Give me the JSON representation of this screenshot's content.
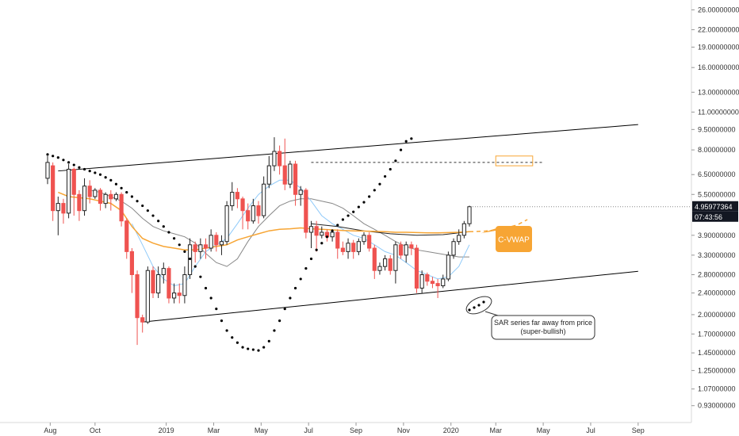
{
  "chart_data": {
    "type": "candlestick",
    "y_scale": "log",
    "ylim": [
      0.88,
      27.5
    ],
    "y_ticks": [
      {
        "label": "26.00000000",
        "value": 26.0
      },
      {
        "label": "22.00000000",
        "value": 22.0
      },
      {
        "label": "19.00000000",
        "value": 19.0
      },
      {
        "label": "16.00000000",
        "value": 16.0
      },
      {
        "label": "13.00000000",
        "value": 13.0
      },
      {
        "label": "11.00000000",
        "value": 11.0
      },
      {
        "label": "9.50000000",
        "value": 9.5
      },
      {
        "label": "8.00000000",
        "value": 8.0
      },
      {
        "label": "6.50000000",
        "value": 6.5
      },
      {
        "label": "5.50000000",
        "value": 5.5
      },
      {
        "label": "3.90000000",
        "value": 3.9
      },
      {
        "label": "3.30000000",
        "value": 3.3
      },
      {
        "label": "2.80000000",
        "value": 2.8
      },
      {
        "label": "2.40000000",
        "value": 2.4
      },
      {
        "label": "2.00000000",
        "value": 2.0
      },
      {
        "label": "1.70000000",
        "value": 1.7
      },
      {
        "label": "1.45000000",
        "value": 1.45
      },
      {
        "label": "1.25000000",
        "value": 1.25
      },
      {
        "label": "1.07000000",
        "value": 1.07
      },
      {
        "label": "0.93000000",
        "value": 0.93
      }
    ],
    "x_ticks": [
      {
        "label": "Aug",
        "bar": 0.5
      },
      {
        "label": "Oct",
        "bar": 9
      },
      {
        "label": "2019",
        "bar": 22.5
      },
      {
        "label": "Mar",
        "bar": 31.5
      },
      {
        "label": "May",
        "bar": 40.5
      },
      {
        "label": "Jul",
        "bar": 49.5
      },
      {
        "label": "Sep",
        "bar": 58.5
      },
      {
        "label": "Nov",
        "bar": 67.5
      },
      {
        "label": "2020",
        "bar": 76.5
      },
      {
        "label": "Mar",
        "bar": 85
      },
      {
        "label": "May",
        "bar": 94
      },
      {
        "label": "Jul",
        "bar": 103
      },
      {
        "label": "Sep",
        "bar": 112
      }
    ],
    "price_label": "4.95977364",
    "countdown_label": "07:43:56",
    "colors": {
      "up": "#ffffff",
      "down": "#ef5350",
      "outline": "#222222",
      "vwap": "#f7a534",
      "ma_fast": "#90caf9",
      "ma_slow": "#888888",
      "sar": "#000000",
      "channel": "#000000",
      "last_price": "#131722"
    },
    "candles": [
      {
        "open": 6.3,
        "close": 7.2,
        "high": 7.6,
        "low": 6.0
      },
      {
        "open": 7.0,
        "close": 4.8,
        "high": 7.2,
        "low": 4.4
      },
      {
        "open": 4.8,
        "close": 5.1,
        "high": 5.4,
        "low": 3.9
      },
      {
        "open": 5.1,
        "close": 4.7,
        "high": 5.3,
        "low": 4.3
      },
      {
        "open": 4.7,
        "close": 6.8,
        "high": 7.1,
        "low": 4.5
      },
      {
        "open": 6.8,
        "close": 5.5,
        "high": 6.9,
        "low": 4.6
      },
      {
        "open": 5.5,
        "close": 4.8,
        "high": 5.7,
        "low": 4.4
      },
      {
        "open": 4.8,
        "close": 5.9,
        "high": 6.3,
        "low": 4.6
      },
      {
        "open": 5.9,
        "close": 5.4,
        "high": 6.2,
        "low": 5.1
      },
      {
        "open": 5.4,
        "close": 5.7,
        "high": 5.8,
        "low": 5.3
      },
      {
        "open": 5.7,
        "close": 5.1,
        "high": 5.8,
        "low": 4.8
      },
      {
        "open": 5.1,
        "close": 5.5,
        "high": 5.6,
        "low": 4.9
      },
      {
        "open": 5.5,
        "close": 5.3,
        "high": 5.7,
        "low": 4.8
      },
      {
        "open": 5.3,
        "close": 5.5,
        "high": 5.6,
        "low": 5.2
      },
      {
        "open": 5.5,
        "close": 4.4,
        "high": 5.6,
        "low": 4.2
      },
      {
        "open": 4.4,
        "close": 3.4,
        "high": 4.5,
        "low": 3.2
      },
      {
        "open": 3.4,
        "close": 2.8,
        "high": 3.5,
        "low": 2.4
      },
      {
        "open": 2.8,
        "close": 1.95,
        "high": 2.9,
        "low": 1.55
      },
      {
        "open": 1.95,
        "close": 1.88,
        "high": 2.0,
        "low": 1.72
      },
      {
        "open": 1.88,
        "close": 2.9,
        "high": 3.0,
        "low": 1.85
      },
      {
        "open": 2.9,
        "close": 2.4,
        "high": 3.0,
        "low": 2.3
      },
      {
        "open": 2.4,
        "close": 2.8,
        "high": 3.0,
        "low": 2.3
      },
      {
        "open": 2.8,
        "close": 2.95,
        "high": 3.1,
        "low": 2.6
      },
      {
        "open": 2.95,
        "close": 2.3,
        "high": 3.0,
        "low": 2.2
      },
      {
        "open": 2.3,
        "close": 2.4,
        "high": 2.6,
        "low": 2.2
      },
      {
        "open": 2.4,
        "close": 2.35,
        "high": 2.6,
        "low": 2.2
      },
      {
        "open": 2.35,
        "close": 2.8,
        "high": 3.0,
        "low": 2.2
      },
      {
        "open": 2.8,
        "close": 3.6,
        "high": 3.8,
        "low": 2.7
      },
      {
        "open": 3.6,
        "close": 3.4,
        "high": 3.7,
        "low": 3.1
      },
      {
        "open": 3.4,
        "close": 3.6,
        "high": 3.8,
        "low": 3.2
      },
      {
        "open": 3.6,
        "close": 3.5,
        "high": 3.8,
        "low": 3.2
      },
      {
        "open": 3.5,
        "close": 3.9,
        "high": 4.1,
        "low": 3.4
      },
      {
        "open": 3.9,
        "close": 3.6,
        "high": 4.0,
        "low": 3.4
      },
      {
        "open": 3.6,
        "close": 3.7,
        "high": 3.9,
        "low": 3.3
      },
      {
        "open": 3.7,
        "close": 5.0,
        "high": 5.2,
        "low": 3.6
      },
      {
        "open": 5.0,
        "close": 5.6,
        "high": 6.1,
        "low": 4.8
      },
      {
        "open": 5.6,
        "close": 5.3,
        "high": 5.8,
        "low": 4.9
      },
      {
        "open": 5.3,
        "close": 4.8,
        "high": 5.4,
        "low": 4.1
      },
      {
        "open": 4.8,
        "close": 4.4,
        "high": 5.1,
        "low": 4.1
      },
      {
        "open": 4.4,
        "close": 5.0,
        "high": 5.3,
        "low": 4.3
      },
      {
        "open": 5.0,
        "close": 4.6,
        "high": 5.2,
        "low": 4.3
      },
      {
        "open": 4.6,
        "close": 6.0,
        "high": 6.4,
        "low": 4.5
      },
      {
        "open": 6.0,
        "close": 7.0,
        "high": 7.6,
        "low": 5.8
      },
      {
        "open": 7.0,
        "close": 7.9,
        "high": 8.9,
        "low": 6.7
      },
      {
        "open": 7.9,
        "close": 7.0,
        "high": 8.3,
        "low": 6.5
      },
      {
        "open": 7.0,
        "close": 6.0,
        "high": 8.8,
        "low": 5.7
      },
      {
        "open": 6.0,
        "close": 7.1,
        "high": 7.3,
        "low": 5.8
      },
      {
        "open": 7.1,
        "close": 5.5,
        "high": 7.3,
        "low": 5.0
      },
      {
        "open": 5.5,
        "close": 5.7,
        "high": 5.9,
        "low": 5.0
      },
      {
        "open": 5.7,
        "close": 4.0,
        "high": 5.8,
        "low": 3.8
      },
      {
        "open": 4.0,
        "close": 4.2,
        "high": 4.4,
        "low": 3.5
      },
      {
        "open": 4.2,
        "close": 3.9,
        "high": 4.4,
        "low": 3.4
      },
      {
        "open": 3.9,
        "close": 4.0,
        "high": 4.2,
        "low": 3.8
      },
      {
        "open": 4.0,
        "close": 3.85,
        "high": 4.1,
        "low": 3.7
      },
      {
        "open": 3.85,
        "close": 4.0,
        "high": 4.1,
        "low": 3.7
      },
      {
        "open": 4.0,
        "close": 3.5,
        "high": 4.1,
        "low": 3.2
      },
      {
        "open": 3.5,
        "close": 3.4,
        "high": 3.7,
        "low": 3.3
      },
      {
        "open": 3.4,
        "close": 3.65,
        "high": 3.8,
        "low": 3.2
      },
      {
        "open": 3.65,
        "close": 3.4,
        "high": 3.75,
        "low": 3.2
      },
      {
        "open": 3.4,
        "close": 3.7,
        "high": 3.8,
        "low": 3.3
      },
      {
        "open": 3.7,
        "close": 3.9,
        "high": 4.0,
        "low": 3.6
      },
      {
        "open": 3.9,
        "close": 3.5,
        "high": 4.0,
        "low": 3.4
      },
      {
        "open": 3.5,
        "close": 2.9,
        "high": 3.6,
        "low": 2.7
      },
      {
        "open": 2.9,
        "close": 3.0,
        "high": 3.1,
        "low": 2.8
      },
      {
        "open": 3.0,
        "close": 3.2,
        "high": 3.3,
        "low": 2.9
      },
      {
        "open": 3.2,
        "close": 2.9,
        "high": 3.3,
        "low": 2.8
      },
      {
        "open": 2.9,
        "close": 3.6,
        "high": 3.7,
        "low": 2.6
      },
      {
        "open": 3.6,
        "close": 3.3,
        "high": 3.7,
        "low": 3.2
      },
      {
        "open": 3.3,
        "close": 3.6,
        "high": 3.7,
        "low": 3.1
      },
      {
        "open": 3.6,
        "close": 3.5,
        "high": 3.7,
        "low": 3.3
      },
      {
        "open": 3.5,
        "close": 2.5,
        "high": 3.6,
        "low": 2.4
      },
      {
        "open": 2.5,
        "close": 2.8,
        "high": 2.9,
        "low": 2.4
      },
      {
        "open": 2.8,
        "close": 2.65,
        "high": 2.85,
        "low": 2.55
      },
      {
        "open": 2.65,
        "close": 2.6,
        "high": 2.75,
        "low": 2.5
      },
      {
        "open": 2.6,
        "close": 2.55,
        "high": 2.7,
        "low": 2.3
      },
      {
        "open": 2.55,
        "close": 2.7,
        "high": 2.8,
        "low": 2.5
      },
      {
        "open": 2.7,
        "close": 3.3,
        "high": 3.4,
        "low": 2.65
      },
      {
        "open": 3.3,
        "close": 3.7,
        "high": 3.8,
        "low": 3.2
      },
      {
        "open": 3.7,
        "close": 3.9,
        "high": 4.1,
        "low": 3.6
      },
      {
        "open": 3.9,
        "close": 4.3,
        "high": 4.4,
        "low": 3.8
      },
      {
        "open": 4.3,
        "close": 4.96,
        "high": 5.0,
        "low": 4.2
      }
    ],
    "vwap": [
      [
        2,
        5.6
      ],
      [
        4,
        5.4
      ],
      [
        6,
        5.35
      ],
      [
        8,
        5.3
      ],
      [
        10,
        5.2
      ],
      [
        12,
        5.1
      ],
      [
        14,
        4.8
      ],
      [
        16,
        4.2
      ],
      [
        18,
        3.8
      ],
      [
        20,
        3.65
      ],
      [
        22,
        3.55
      ],
      [
        24,
        3.5
      ],
      [
        26,
        3.45
      ],
      [
        28,
        3.45
      ],
      [
        30,
        3.5
      ],
      [
        32,
        3.55
      ],
      [
        34,
        3.6
      ],
      [
        36,
        3.75
      ],
      [
        38,
        3.85
      ],
      [
        40,
        3.95
      ],
      [
        42,
        4.05
      ],
      [
        44,
        4.1
      ],
      [
        46,
        4.12
      ],
      [
        48,
        4.15
      ],
      [
        50,
        4.12
      ],
      [
        52,
        4.1
      ],
      [
        54,
        4.08
      ],
      [
        56,
        4.06
      ],
      [
        58,
        4.05
      ],
      [
        60,
        4.04
      ],
      [
        62,
        4.03
      ],
      [
        64,
        4.02
      ],
      [
        66,
        4.0
      ],
      [
        68,
        4.0
      ],
      [
        70,
        3.99
      ],
      [
        72,
        3.98
      ],
      [
        74,
        3.98
      ],
      [
        76,
        3.99
      ],
      [
        78,
        4.0
      ],
      [
        80,
        4.02
      ]
    ],
    "vwap_projection": [
      [
        80,
        4.02
      ],
      [
        83,
        4.04
      ],
      [
        86,
        4.1
      ],
      [
        89,
        4.25
      ],
      [
        91,
        4.45
      ]
    ],
    "ma_slow": [
      [
        8,
        5.7
      ],
      [
        10,
        5.6
      ],
      [
        12,
        5.4
      ],
      [
        14,
        5.2
      ],
      [
        16,
        4.9
      ],
      [
        18,
        4.5
      ],
      [
        20,
        4.2
      ],
      [
        22,
        4.05
      ],
      [
        24,
        3.95
      ],
      [
        26,
        3.85
      ],
      [
        28,
        3.65
      ],
      [
        30,
        3.35
      ],
      [
        32,
        3.1
      ],
      [
        34,
        3.0
      ],
      [
        36,
        3.2
      ],
      [
        38,
        3.7
      ],
      [
        40,
        4.2
      ],
      [
        42,
        4.6
      ],
      [
        44,
        5.0
      ],
      [
        46,
        5.2
      ],
      [
        48,
        5.3
      ],
      [
        50,
        5.3
      ],
      [
        52,
        5.2
      ],
      [
        54,
        5.1
      ],
      [
        56,
        4.9
      ],
      [
        58,
        4.6
      ],
      [
        60,
        4.3
      ],
      [
        62,
        4.1
      ],
      [
        64,
        3.9
      ],
      [
        66,
        3.7
      ],
      [
        68,
        3.55
      ],
      [
        70,
        3.45
      ],
      [
        72,
        3.4
      ],
      [
        74,
        3.35
      ],
      [
        76,
        3.3
      ],
      [
        78,
        3.25
      ],
      [
        80,
        3.25
      ]
    ],
    "ma_fast": [
      [
        16,
        4.3
      ],
      [
        18,
        3.6
      ],
      [
        20,
        3.0
      ],
      [
        22,
        2.7
      ],
      [
        24,
        2.55
      ],
      [
        26,
        2.6
      ],
      [
        28,
        3.0
      ],
      [
        30,
        3.4
      ],
      [
        32,
        3.6
      ],
      [
        34,
        3.8
      ],
      [
        36,
        4.3
      ],
      [
        38,
        4.9
      ],
      [
        40,
        5.5
      ],
      [
        42,
        5.9
      ],
      [
        44,
        6.2
      ],
      [
        46,
        6.2
      ],
      [
        48,
        5.8
      ],
      [
        50,
        5.2
      ],
      [
        52,
        4.6
      ],
      [
        54,
        4.3
      ],
      [
        56,
        4.1
      ],
      [
        58,
        3.9
      ],
      [
        60,
        3.8
      ],
      [
        62,
        3.6
      ],
      [
        64,
        3.4
      ],
      [
        66,
        3.3
      ],
      [
        68,
        3.1
      ],
      [
        70,
        2.9
      ],
      [
        72,
        2.8
      ],
      [
        74,
        2.7
      ],
      [
        76,
        2.75
      ],
      [
        78,
        3.0
      ],
      [
        80,
        3.6
      ]
    ],
    "vwap_last_segment": [
      [
        50,
        4.3
      ],
      [
        55,
        4.2
      ],
      [
        60,
        4.05
      ],
      [
        65,
        3.95
      ],
      [
        70,
        3.9
      ],
      [
        75,
        3.92
      ],
      [
        80,
        4.02
      ]
    ],
    "sar": [
      [
        0,
        7.7
      ],
      [
        1,
        7.6
      ],
      [
        2,
        7.5
      ],
      [
        3,
        7.35
      ],
      [
        4,
        7.2
      ],
      [
        5,
        7.05
      ],
      [
        6,
        6.9
      ],
      [
        7,
        6.8
      ],
      [
        8,
        6.7
      ],
      [
        9,
        6.6
      ],
      [
        10,
        6.5
      ],
      [
        11,
        6.35
      ],
      [
        12,
        6.2
      ],
      [
        13,
        6.0
      ],
      [
        14,
        5.8
      ],
      [
        15,
        5.6
      ],
      [
        16,
        5.4
      ],
      [
        17,
        5.2
      ],
      [
        18,
        5.0
      ],
      [
        19,
        4.8
      ],
      [
        20,
        4.6
      ],
      [
        21,
        4.4
      ],
      [
        22,
        4.2
      ],
      [
        23,
        4.0
      ],
      [
        24,
        3.8
      ],
      [
        25,
        3.6
      ],
      [
        26,
        3.4
      ],
      [
        27,
        3.2
      ],
      [
        28,
        3.0
      ],
      [
        29,
        2.75
      ],
      [
        30,
        2.5
      ],
      [
        31,
        2.3
      ],
      [
        32,
        2.1
      ],
      [
        33,
        1.9
      ],
      [
        34,
        1.75
      ],
      [
        35,
        1.65
      ],
      [
        36,
        1.58
      ],
      [
        37,
        1.52
      ],
      [
        38,
        1.5
      ],
      [
        39,
        1.49
      ],
      [
        40,
        1.48
      ],
      [
        41,
        1.52
      ],
      [
        42,
        1.6
      ],
      [
        43,
        1.75
      ],
      [
        44,
        1.9
      ],
      [
        45,
        2.1
      ],
      [
        46,
        2.3
      ],
      [
        47,
        2.5
      ],
      [
        48,
        2.7
      ],
      [
        49,
        2.95
      ],
      [
        50,
        3.2
      ],
      [
        51,
        3.45
      ],
      [
        52,
        3.65
      ],
      [
        53,
        3.85
      ],
      [
        54,
        4.05
      ],
      [
        55,
        4.25
      ],
      [
        56,
        4.45
      ],
      [
        57,
        4.6
      ],
      [
        58,
        4.75
      ],
      [
        59,
        4.95
      ],
      [
        60,
        5.15
      ],
      [
        61,
        5.4
      ],
      [
        62,
        5.7
      ],
      [
        63,
        6.0
      ],
      [
        64,
        6.4
      ],
      [
        65,
        6.8
      ],
      [
        66,
        7.3
      ],
      [
        67,
        8.0
      ],
      [
        68,
        8.6
      ],
      [
        69,
        8.8
      ]
    ],
    "channel_upper": {
      "from": [
        2,
        6.7
      ],
      "to": [
        112,
        9.9
      ]
    },
    "channel_lower": {
      "from": [
        18,
        1.88
      ],
      "to": [
        112,
        2.88
      ]
    },
    "resistance_dashed": {
      "from": [
        50,
        7.2
      ],
      "to": [
        94,
        7.2
      ],
      "value": 7.2
    },
    "resistance_marker": {
      "from": [
        85,
        7.0
      ],
      "to": [
        92,
        7.6
      ]
    },
    "annotations": [
      {
        "text": "C-VWAP",
        "anchor_bar": 81,
        "anchor_value": 4.02
      },
      {
        "text": "SAR series far away from price (super-bullish)",
        "anchor_bar": 83,
        "anchor_value": 2.4
      }
    ]
  },
  "ui": {
    "price_badge_text": "4.95977364",
    "countdown_text": "07:43:56",
    "vwap_label": "C-VWAP",
    "callout_line1": "SAR series far away from price",
    "callout_line2": "(super-bullish)"
  }
}
